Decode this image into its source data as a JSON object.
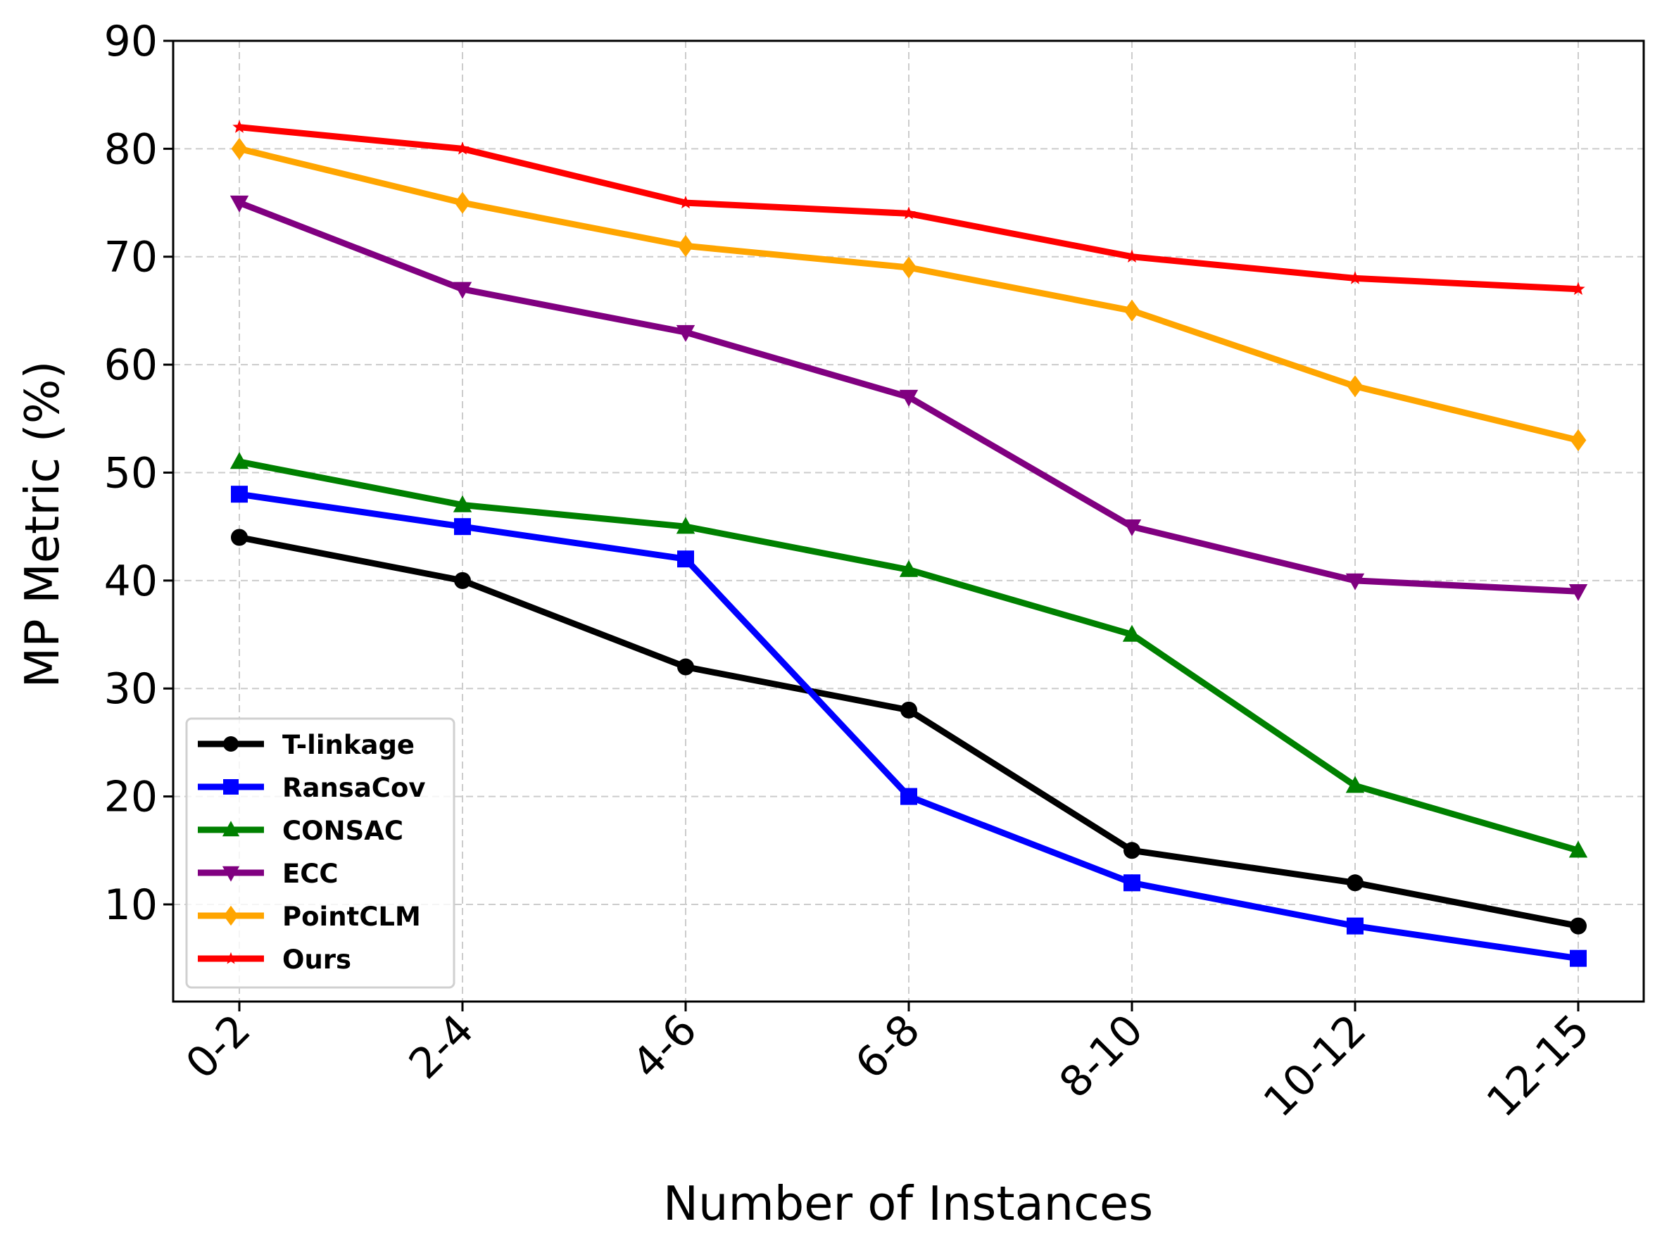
{
  "chart_data": {
    "type": "line",
    "title": "",
    "xlabel": "Number of Instances",
    "ylabel": "MP Metric (%)",
    "categories": [
      "0-2",
      "2-4",
      "4-6",
      "6-8",
      "8-10",
      "10-12",
      "12-15"
    ],
    "ylim": [
      1,
      90
    ],
    "yticks": [
      10,
      20,
      30,
      40,
      50,
      60,
      70,
      80,
      90
    ],
    "grid": true,
    "legend_position": "lower-left",
    "series": [
      {
        "name": "T-linkage",
        "color": "#000000",
        "marker": "circle",
        "values": [
          44,
          40,
          32,
          28,
          15,
          12,
          8
        ]
      },
      {
        "name": "RansaCov",
        "color": "#0000ff",
        "marker": "square",
        "values": [
          48,
          45,
          42,
          20,
          12,
          8,
          5
        ]
      },
      {
        "name": "CONSAC",
        "color": "#008000",
        "marker": "triangle-up",
        "values": [
          51,
          47,
          45,
          41,
          35,
          21,
          15
        ]
      },
      {
        "name": "ECC",
        "color": "#800080",
        "marker": "triangle-down",
        "values": [
          75,
          67,
          63,
          57,
          45,
          40,
          39
        ]
      },
      {
        "name": "PointCLM",
        "color": "#ffa500",
        "marker": "diamond",
        "values": [
          80,
          75,
          71,
          69,
          65,
          58,
          53
        ]
      },
      {
        "name": "Ours",
        "color": "#ff0000",
        "marker": "star",
        "values": [
          82,
          80,
          75,
          74,
          70,
          68,
          67
        ]
      }
    ]
  }
}
